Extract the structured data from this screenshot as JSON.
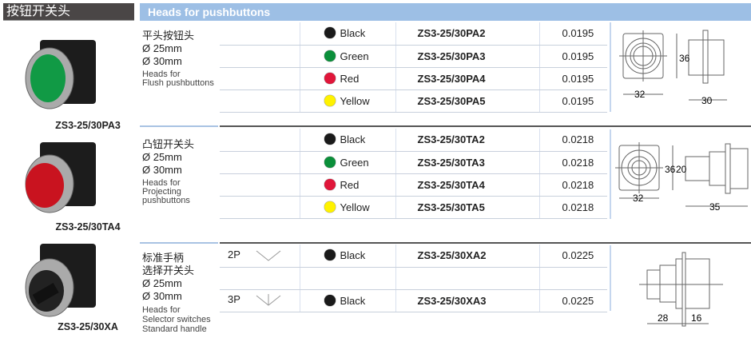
{
  "header": {
    "title_cn": "按钮开关头",
    "title_en": "Heads for pushbuttons"
  },
  "colors": {
    "Black": "#1a1a1a",
    "Green": "#0b8f3a",
    "Red": "#e0163a",
    "Yellow": "#fff200",
    "header_blue": "#9dbfe5"
  },
  "sections": [
    {
      "model": "ZS3-25/30PA3",
      "name_cn": "平头按钮头",
      "sizes": [
        "Ø 25mm",
        "Ø 30mm"
      ],
      "name_en": [
        "Heads for",
        "Flush pushbuttons"
      ],
      "rows": [
        {
          "color": "Black",
          "code": "ZS3-25/30PA2",
          "weight": "0.0195"
        },
        {
          "color": "Green",
          "code": "ZS3-25/30PA3",
          "weight": "0.0195"
        },
        {
          "color": "Red",
          "code": "ZS3-25/30PA4",
          "weight": "0.0195"
        },
        {
          "color": "Yellow",
          "code": "ZS3-25/30PA5",
          "weight": "0.0195"
        }
      ],
      "dims": [
        "32",
        "36",
        "30"
      ]
    },
    {
      "model": "ZS3-25/30TA4",
      "name_cn": "凸钮开关头",
      "sizes": [
        "Ø 25mm",
        "Ø 30mm"
      ],
      "name_en": [
        "Heads for",
        "Projecting",
        "pushbuttons"
      ],
      "rows": [
        {
          "color": "Black",
          "code": "ZS3-25/30TA2",
          "weight": "0.0218"
        },
        {
          "color": "Green",
          "code": "ZS3-25/30TA3",
          "weight": "0.0218"
        },
        {
          "color": "Red",
          "code": "ZS3-25/30TA4",
          "weight": "0.0218"
        },
        {
          "color": "Yellow",
          "code": "ZS3-25/30TA5",
          "weight": "0.0218"
        }
      ],
      "dims": [
        "32",
        "36",
        "20",
        "35"
      ]
    },
    {
      "model": "ZS3-25/30XA",
      "name_cn": [
        "标准手柄",
        "选择开关头"
      ],
      "sizes": [
        "Ø 25mm",
        "Ø 30mm"
      ],
      "name_en": [
        "Heads for",
        "Selector switches",
        "Standard handle"
      ],
      "rows": [
        {
          "position": "2P",
          "color": "Black",
          "code": "ZS3-25/30XA2",
          "weight": "0.0225"
        },
        {
          "position": "3P",
          "color": "Black",
          "code": "ZS3-25/30XA3",
          "weight": "0.0225"
        }
      ],
      "dims": [
        "28",
        "16"
      ]
    }
  ]
}
